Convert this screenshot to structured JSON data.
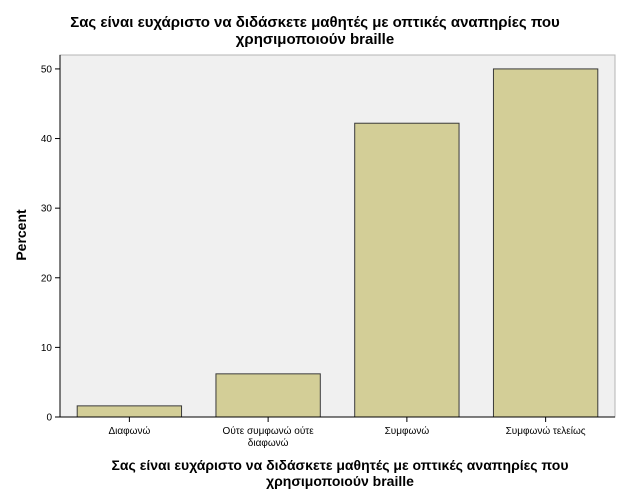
{
  "chart_data": {
    "type": "bar",
    "title_lines": [
      "Σας είναι ευχάριστο να διδάσκετε μαθητές με οπτικές αναπηρίες που",
      "χρησιμοποιούν braille"
    ],
    "xlabel_lines": [
      "Σας είναι ευχάριστο να διδάσκετε μαθητές με οπτικές αναπηρίες που",
      "χρησιμοποιούν braille"
    ],
    "ylabel": "Percent",
    "categories": [
      [
        "Διαφωνώ"
      ],
      [
        "Ούτε συμφωνώ ούτε",
        "διαφωνώ"
      ],
      [
        "Συμφωνώ"
      ],
      [
        "Συμφωνώ τελείως"
      ]
    ],
    "values": [
      1.6,
      6.2,
      42.2,
      50.0
    ],
    "ylim": [
      0,
      52
    ],
    "yticks": [
      0,
      10,
      20,
      30,
      40,
      50
    ],
    "grid": false,
    "colors": {
      "plot_background": "#f0f0f0",
      "bar_fill": "#d3ce97",
      "bar_stroke": "#3a3a3a",
      "frame": "#b5b5b5"
    }
  }
}
